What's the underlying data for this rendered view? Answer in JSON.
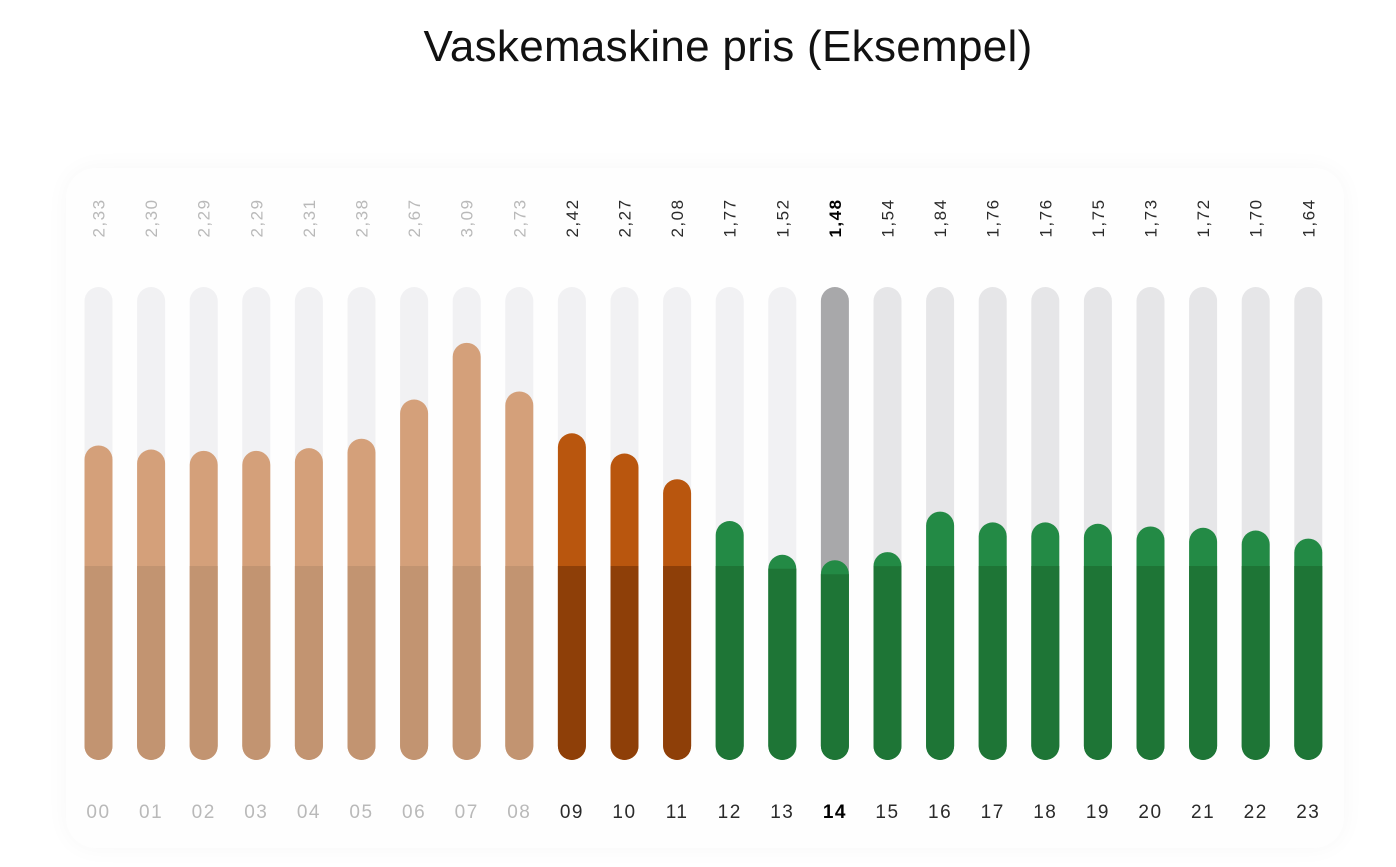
{
  "chart_data": {
    "type": "bar",
    "title": "Vaskemaskine pris (Eksempel)",
    "categories": [
      "00",
      "01",
      "02",
      "03",
      "04",
      "05",
      "06",
      "07",
      "08",
      "09",
      "10",
      "11",
      "12",
      "13",
      "14",
      "15",
      "16",
      "17",
      "18",
      "19",
      "20",
      "21",
      "22",
      "23"
    ],
    "value_labels": [
      "2,33",
      "2,30",
      "2,29",
      "2,29",
      "2,31",
      "2,38",
      "2,67",
      "3,09",
      "2,73",
      "2,42",
      "2,27",
      "2,08",
      "1,77",
      "1,52",
      "1,48",
      "1,54",
      "1,84",
      "1,76",
      "1,76",
      "1,75",
      "1,73",
      "1,72",
      "1,70",
      "1,64"
    ],
    "values": [
      2.33,
      2.3,
      2.29,
      2.29,
      2.31,
      2.38,
      2.67,
      3.09,
      2.73,
      2.42,
      2.27,
      2.08,
      1.77,
      1.52,
      1.48,
      1.54,
      1.84,
      1.76,
      1.76,
      1.75,
      1.73,
      1.72,
      1.7,
      1.64
    ],
    "highlight_index": 14,
    "xlabel": "",
    "ylabel": "",
    "ylim": [
      0,
      3.5
    ],
    "grid": false,
    "legend": "none",
    "colors": {
      "past_expensive": "#d4a07a",
      "past_base": "#c29471",
      "upcoming_expensive": "#b9560e",
      "upcoming_base": "#8e3f08",
      "cheap": "#238a45",
      "cheap_base": "#1e7536",
      "current_track": "#a8a8aa",
      "track": "#e6e6e8",
      "past_track": "#f1f1f3",
      "label_past": "#b9b9b9",
      "label_future": "#2a2a2a",
      "label_current": "#000000"
    }
  }
}
